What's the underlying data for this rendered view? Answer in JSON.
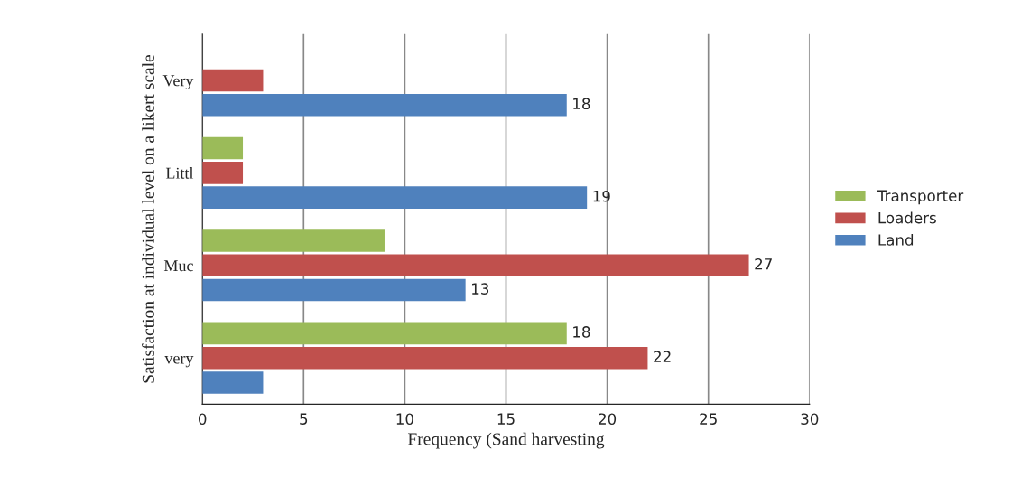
{
  "chart_data": {
    "type": "bar",
    "orientation": "horizontal",
    "xlabel": "Frequency (Sand harvesting",
    "ylabel": "Satisfaction at individual level on a likert scale",
    "categories": [
      "Very",
      "Littl",
      "Muc",
      "very"
    ],
    "series": [
      {
        "name": "Land",
        "color": "#4f81bd",
        "values": [
          18,
          19,
          13,
          3
        ],
        "value_labels": [
          "18",
          "19",
          "13",
          null
        ]
      },
      {
        "name": "Loaders",
        "color": "#c0504d",
        "values": [
          3,
          2,
          27,
          22
        ],
        "value_labels": [
          null,
          null,
          "27",
          "22"
        ]
      },
      {
        "name": "Transporter",
        "color": "#9bbb59",
        "values": [
          0,
          2,
          9,
          18
        ],
        "value_labels": [
          null,
          null,
          null,
          "18"
        ]
      }
    ],
    "xlim": [
      0,
      30
    ],
    "xticks": [
      0,
      5,
      10,
      15,
      20,
      25,
      30
    ],
    "grid": "x",
    "legend": "right"
  }
}
